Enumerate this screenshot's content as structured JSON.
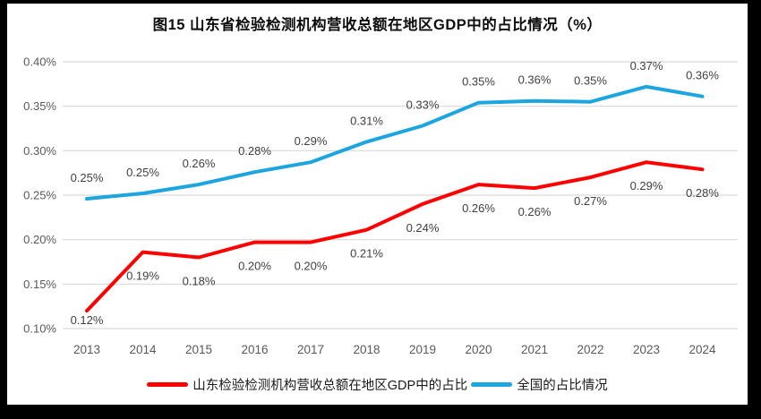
{
  "frame": {
    "border_color": "#000000",
    "background_color": "#ffffff"
  },
  "chart_data": {
    "type": "line",
    "title": "图15  山东省检验检测机构营收总额在地区GDP中的占比情况（%）",
    "xlabel": "",
    "ylabel": "",
    "categories": [
      "2013",
      "2014",
      "2015",
      "2016",
      "2017",
      "2018",
      "2019",
      "2020",
      "2021",
      "2022",
      "2023",
      "2024"
    ],
    "series": [
      {
        "name": "山东检验检测机构营收总额在地区GDP中的占比",
        "color": "#FF0000",
        "values": [
          0.12,
          0.186,
          0.18,
          0.197,
          0.197,
          0.211,
          0.24,
          0.262,
          0.258,
          0.27,
          0.287,
          0.279
        ],
        "point_labels": [
          "0.12%",
          "0.19%",
          "0.18%",
          "0.20%",
          "0.20%",
          "0.21%",
          "0.24%",
          "0.26%",
          "0.26%",
          "0.27%",
          "0.29%",
          "0.28%"
        ],
        "label_position": "below"
      },
      {
        "name": "全国的占比情况",
        "color": "#1CA5DE",
        "values": [
          0.246,
          0.252,
          0.262,
          0.276,
          0.287,
          0.31,
          0.328,
          0.354,
          0.356,
          0.355,
          0.372,
          0.361
        ],
        "point_labels": [
          "0.25%",
          "0.25%",
          "0.26%",
          "0.28%",
          "0.29%",
          "0.31%",
          "0.33%",
          "0.35%",
          "0.36%",
          "0.35%",
          "0.37%",
          "0.36%"
        ],
        "label_position": "above"
      }
    ],
    "ylim": [
      0.1,
      0.4
    ],
    "ytick_step": 0.05,
    "ytick_labels": [
      "0.10%",
      "0.15%",
      "0.20%",
      "0.25%",
      "0.30%",
      "0.35%",
      "0.40%"
    ],
    "grid": true,
    "legend_position": "bottom",
    "colors": {
      "gridline": "#D9D9D9",
      "axis_text": "#595959",
      "data_label": "#404040",
      "title": "#0d0d0d"
    }
  }
}
